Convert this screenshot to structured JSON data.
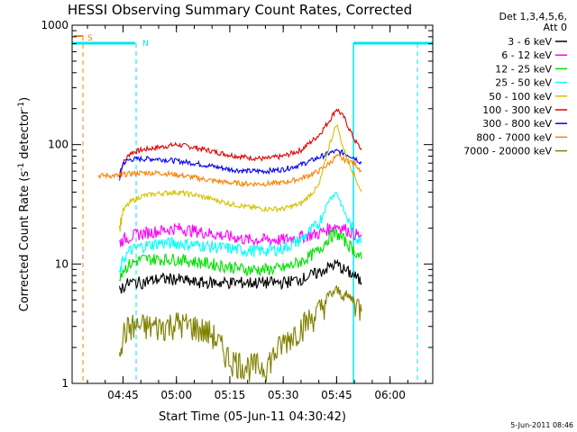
{
  "chart_data": {
    "type": "line",
    "title": "HESSI Observing Summary Count Rates, Corrected",
    "xlabel": "Start Time (05-Jun-11 04:30:42)",
    "ylabel": "Corrected Count Rate (s",
    "ylabel_exp": "-1",
    "ylabel_mid": " detector",
    "ylabel_end": ")",
    "y_scale": "log",
    "ylim": [
      1,
      1000
    ],
    "xlim": [
      "04:30:42",
      "06:12"
    ],
    "x_ticks": [
      "04:45",
      "05:00",
      "05:15",
      "05:30",
      "05:45",
      "06:00"
    ],
    "y_ticks": [
      "1",
      "10",
      "100",
      "1000"
    ],
    "grid": false,
    "legend": {
      "position": "top-right",
      "header": [
        "Det 1,3,4,5,6,",
        "Att 0"
      ],
      "entries": [
        {
          "label": "3 - 6 keV",
          "color": "#000000"
        },
        {
          "label": "6 - 12 keV",
          "color": "#ff00ff"
        },
        {
          "label": "12 - 25 keV",
          "color": "#00e000"
        },
        {
          "label": "25 - 50 keV",
          "color": "#00ffff"
        },
        {
          "label": "50 - 100 keV",
          "color": "#d4c200"
        },
        {
          "label": "100 - 300 keV",
          "color": "#e00000"
        },
        {
          "label": "300 - 800 keV",
          "color": "#0000ff"
        },
        {
          "label": "800 - 7000 keV",
          "color": "#ff8000"
        },
        {
          "label": "7000 - 20000 keV",
          "color": "#808000"
        }
      ]
    },
    "annotations": {
      "saa_label": "S",
      "night_label": "N",
      "timestamp": "5-Jun-2011 08:46"
    },
    "series": [
      {
        "color": "#e00000",
        "x": [
          "04:44",
          "04:45",
          "04:47",
          "04:50",
          "04:55",
          "05:00",
          "05:05",
          "05:10",
          "05:15",
          "05:20",
          "05:25",
          "05:30",
          "05:35",
          "05:40",
          "05:43",
          "05:45",
          "05:47",
          "05:50",
          "05:52"
        ],
        "values": [
          50,
          70,
          85,
          90,
          95,
          100,
          95,
          88,
          82,
          78,
          76,
          80,
          90,
          120,
          160,
          200,
          170,
          110,
          90
        ]
      },
      {
        "color": "#0000ff",
        "x": [
          "04:44",
          "04:45",
          "04:47",
          "04:50",
          "04:55",
          "05:00",
          "05:05",
          "05:10",
          "05:15",
          "05:20",
          "05:25",
          "05:30",
          "05:35",
          "05:40",
          "05:43",
          "05:45",
          "05:47",
          "05:50",
          "05:52"
        ],
        "values": [
          55,
          70,
          75,
          76,
          76,
          73,
          70,
          66,
          62,
          60,
          60,
          62,
          68,
          78,
          85,
          88,
          85,
          78,
          70
        ]
      },
      {
        "color": "#ff8000",
        "x": [
          "04:38",
          "04:44",
          "04:45",
          "04:47",
          "04:50",
          "04:55",
          "05:00",
          "05:05",
          "05:10",
          "05:15",
          "05:20",
          "05:25",
          "05:30",
          "05:35",
          "05:40",
          "05:43",
          "05:45",
          "05:47",
          "05:50",
          "05:52"
        ],
        "values": [
          55,
          55,
          56,
          57,
          58,
          58,
          56,
          53,
          50,
          48,
          47,
          47,
          48,
          52,
          60,
          70,
          80,
          75,
          70,
          60
        ]
      },
      {
        "color": "#d4c200",
        "x": [
          "04:44",
          "04:45",
          "04:47",
          "04:50",
          "04:55",
          "05:00",
          "05:05",
          "05:10",
          "05:15",
          "05:20",
          "05:25",
          "05:30",
          "05:35",
          "05:40",
          "05:43",
          "05:45",
          "05:47",
          "05:50",
          "05:52"
        ],
        "values": [
          20,
          28,
          33,
          37,
          39,
          40,
          38,
          35,
          32,
          30,
          29,
          29,
          32,
          45,
          100,
          150,
          90,
          55,
          40
        ]
      },
      {
        "color": "#ff00ff",
        "x": [
          "04:44",
          "04:45",
          "04:47",
          "04:50",
          "04:55",
          "05:00",
          "05:05",
          "05:10",
          "05:15",
          "05:20",
          "05:25",
          "05:30",
          "05:35",
          "05:40",
          "05:43",
          "05:45",
          "05:47",
          "05:50",
          "05:52"
        ],
        "values": [
          15,
          16,
          17,
          18,
          19,
          20,
          19,
          18,
          17,
          16,
          16,
          16,
          17,
          18,
          20,
          21,
          20,
          18,
          17
        ]
      },
      {
        "color": "#00ffff",
        "x": [
          "04:44",
          "04:45",
          "04:47",
          "04:50",
          "04:55",
          "05:00",
          "05:05",
          "05:10",
          "05:15",
          "05:20",
          "05:25",
          "05:30",
          "05:35",
          "05:40",
          "05:43",
          "05:45",
          "05:47",
          "05:50",
          "05:52"
        ],
        "values": [
          8,
          11,
          13,
          14,
          15,
          15,
          14.5,
          14,
          13.5,
          13,
          13,
          13.5,
          16,
          22,
          35,
          40,
          28,
          18,
          15
        ]
      },
      {
        "color": "#00e000",
        "x": [
          "04:44",
          "04:45",
          "04:47",
          "04:50",
          "04:55",
          "05:00",
          "05:05",
          "05:10",
          "05:15",
          "05:20",
          "05:25",
          "05:30",
          "05:35",
          "05:40",
          "05:43",
          "05:45",
          "05:47",
          "05:50",
          "05:52"
        ],
        "values": [
          8,
          9,
          10,
          11,
          11,
          11,
          10.5,
          10,
          9.5,
          9,
          9,
          9.2,
          10.5,
          13,
          17,
          18,
          16,
          13,
          11
        ]
      },
      {
        "color": "#000000",
        "x": [
          "04:44",
          "04:45",
          "04:47",
          "04:50",
          "04:55",
          "05:00",
          "05:05",
          "05:10",
          "05:15",
          "05:20",
          "05:25",
          "05:30",
          "05:35",
          "05:40",
          "05:43",
          "05:45",
          "05:47",
          "05:50",
          "05:52"
        ],
        "values": [
          6,
          6.5,
          7,
          7,
          7.5,
          7.5,
          7,
          7,
          7,
          7,
          7,
          7,
          7.5,
          8.5,
          9.5,
          10,
          9,
          8,
          7
        ]
      },
      {
        "color": "#808000",
        "x": [
          "04:44",
          "04:45",
          "04:47",
          "04:50",
          "04:55",
          "05:00",
          "05:05",
          "05:10",
          "05:15",
          "05:20",
          "05:25",
          "05:30",
          "05:35",
          "05:40",
          "05:43",
          "05:45",
          "05:47",
          "05:50",
          "05:52"
        ],
        "values": [
          2,
          2.6,
          3,
          3,
          3,
          3.2,
          3,
          2.6,
          1.6,
          1.4,
          1.4,
          2.2,
          3,
          4,
          5.5,
          6,
          5.5,
          5,
          4
        ]
      }
    ]
  }
}
